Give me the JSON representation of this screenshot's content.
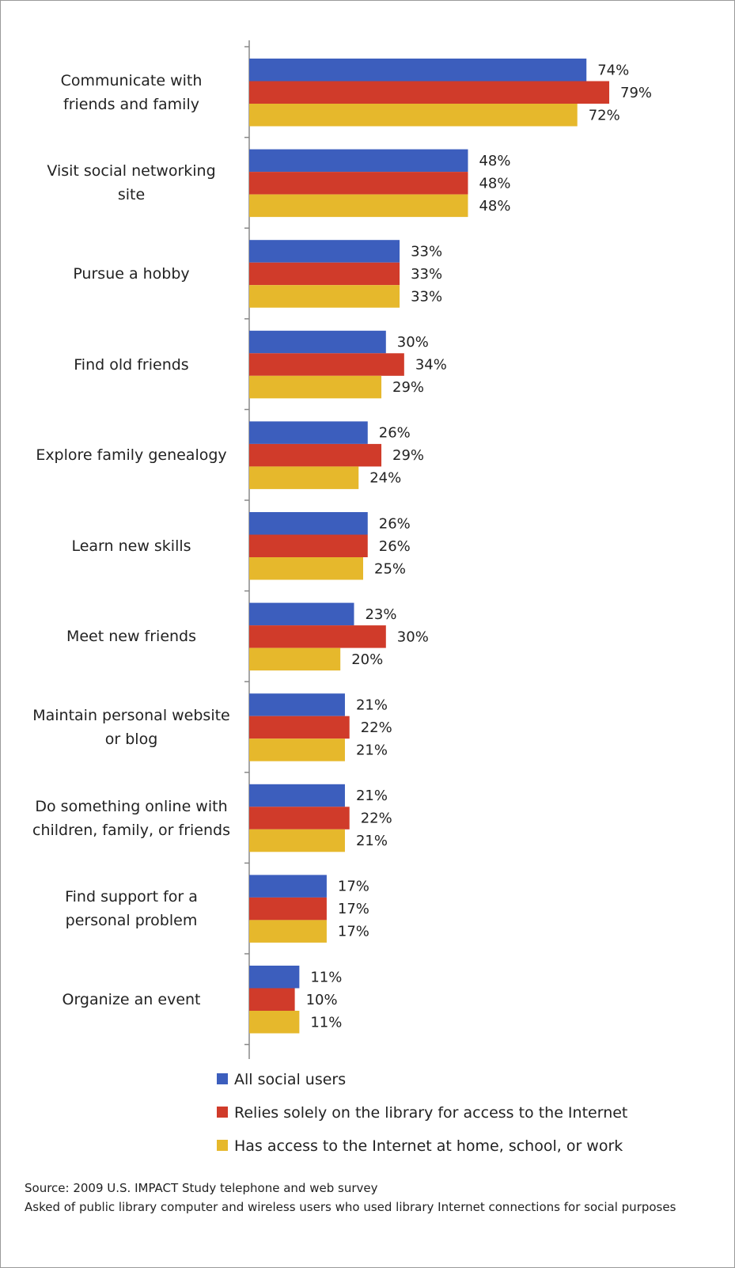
{
  "chart_data": {
    "type": "hbar",
    "categories": [
      "Communicate with friends and family",
      "Visit social networking site",
      "Pursue a hobby",
      "Find old friends",
      "Explore family genealogy",
      "Learn new skills",
      "Meet new friends",
      "Maintain personal website or blog",
      "Do something online with children, family, or friends",
      "Find support for a personal problem",
      "Organize an event"
    ],
    "series": [
      {
        "name": "All social users",
        "color": "#3c5ebd",
        "values": [
          74,
          48,
          33,
          30,
          26,
          26,
          23,
          21,
          21,
          17,
          11
        ],
        "value_labels": [
          "74%",
          "48%",
          "33%",
          "30%",
          "26%",
          "26%",
          "23%",
          "21%",
          "21%",
          "17%",
          "11%"
        ]
      },
      {
        "name": "Relies solely on the library for access to the Internet",
        "color": "#d03b2a",
        "values": [
          79,
          48,
          33,
          34,
          29,
          26,
          30,
          22,
          22,
          17,
          10
        ],
        "value_labels": [
          "79%",
          "48%",
          "33%",
          "34%",
          "29%",
          "26%",
          "30%",
          "22%",
          "22%",
          "17%",
          "10%"
        ]
      },
      {
        "name": "Has access to the Internet at home, school, or work",
        "color": "#e6b82c",
        "values": [
          72,
          48,
          33,
          29,
          24,
          25,
          20,
          21,
          21,
          17,
          11
        ],
        "value_labels": [
          "72%",
          "48%",
          "33%",
          "29%",
          "24%",
          "25%",
          "20%",
          "21%",
          "21%",
          "17%",
          "11%"
        ]
      }
    ],
    "xlim": [
      0,
      100
    ],
    "source": "Source: 2009 U.S. IMPACT Study telephone and web survey",
    "note": "Asked of public library computer and wireless users who used library Internet connections for social purposes"
  }
}
